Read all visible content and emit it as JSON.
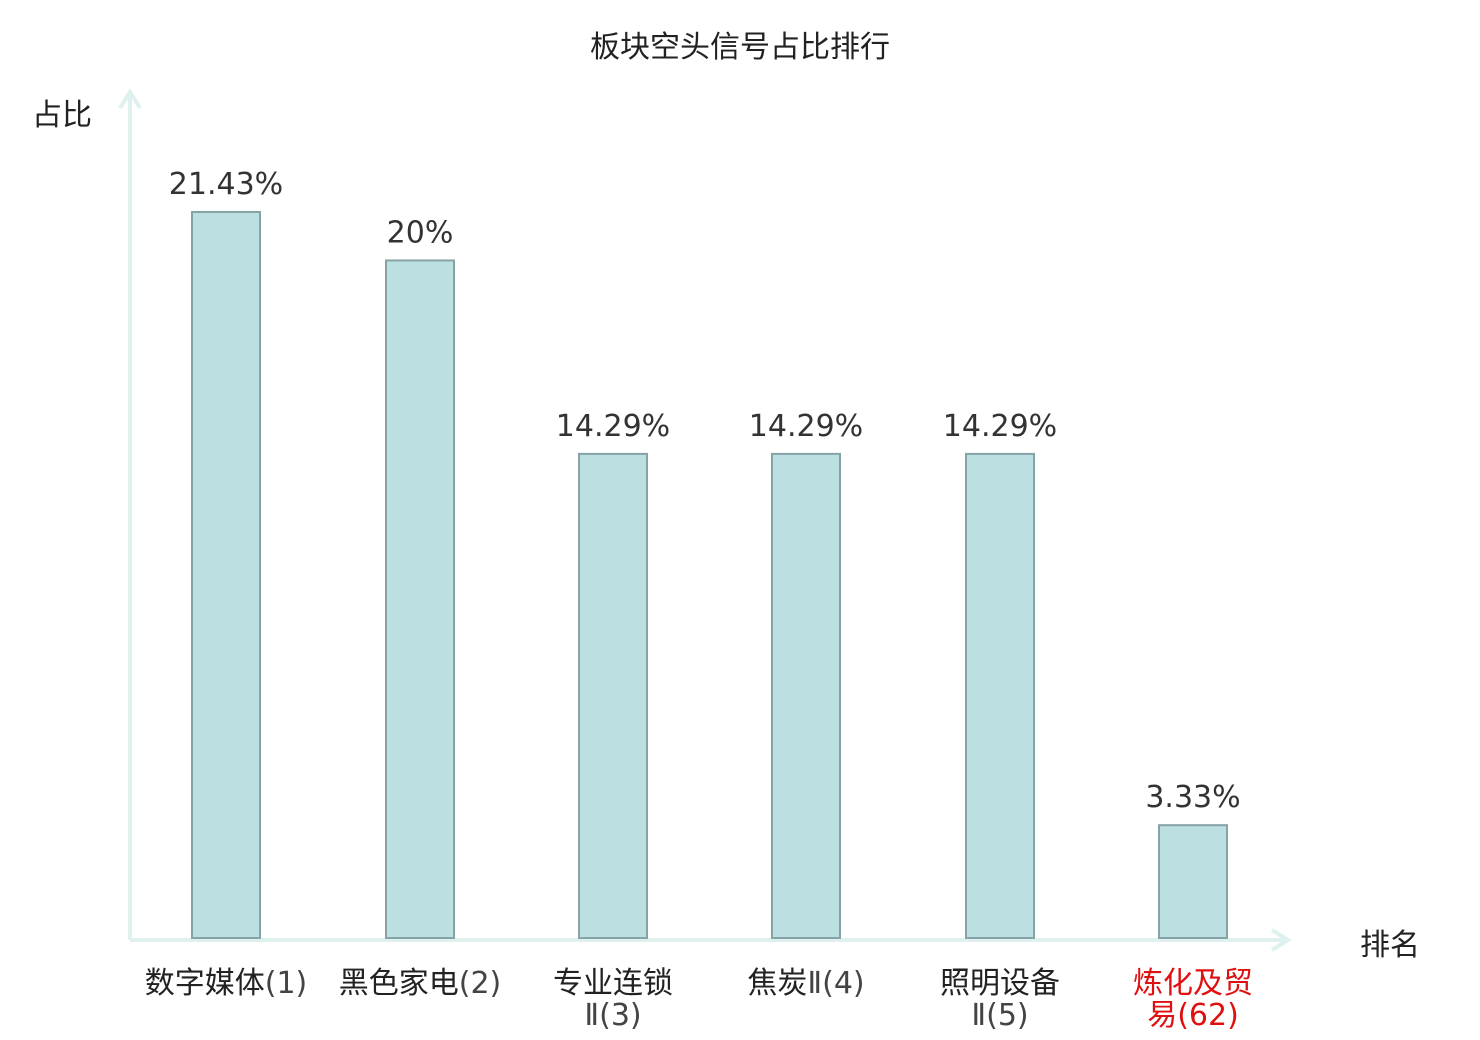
{
  "chart_data": {
    "type": "bar",
    "title": "板块空头信号占比排行",
    "ylabel": "占比",
    "xlabel": "排名",
    "ylim": [
      0,
      25
    ],
    "categories": [
      {
        "lines": [
          {
            "name": "数字媒体",
            "rank": "(1)"
          }
        ],
        "highlight": false
      },
      {
        "lines": [
          {
            "name": "黑色家电",
            "rank": "(2)"
          }
        ],
        "highlight": false
      },
      {
        "lines": [
          {
            "name": "专业连锁",
            "rank": ""
          },
          {
            "name": "",
            "rank": "Ⅱ(3)"
          }
        ],
        "highlight": false
      },
      {
        "lines": [
          {
            "name": "焦炭",
            "rank": "Ⅱ(4)"
          }
        ],
        "highlight": false
      },
      {
        "lines": [
          {
            "name": "照明设备",
            "rank": ""
          },
          {
            "name": "",
            "rank": "Ⅱ(5)"
          }
        ],
        "highlight": false
      },
      {
        "lines": [
          {
            "name": "炼化及贸",
            "rank": ""
          },
          {
            "name": "易",
            "rank": "(62)"
          }
        ],
        "highlight": true
      }
    ],
    "values": [
      21.43,
      20,
      14.29,
      14.29,
      14.29,
      3.33
    ],
    "value_labels": [
      "21.43%",
      "20%",
      "14.29%",
      "14.29%",
      "14.29%",
      "3.33%"
    ],
    "colors": {
      "bar_fill": "#bce0e2",
      "bar_stroke": "#86a4a6",
      "axis": "#dff1ee",
      "highlight": "#e01010"
    },
    "grid": false
  }
}
